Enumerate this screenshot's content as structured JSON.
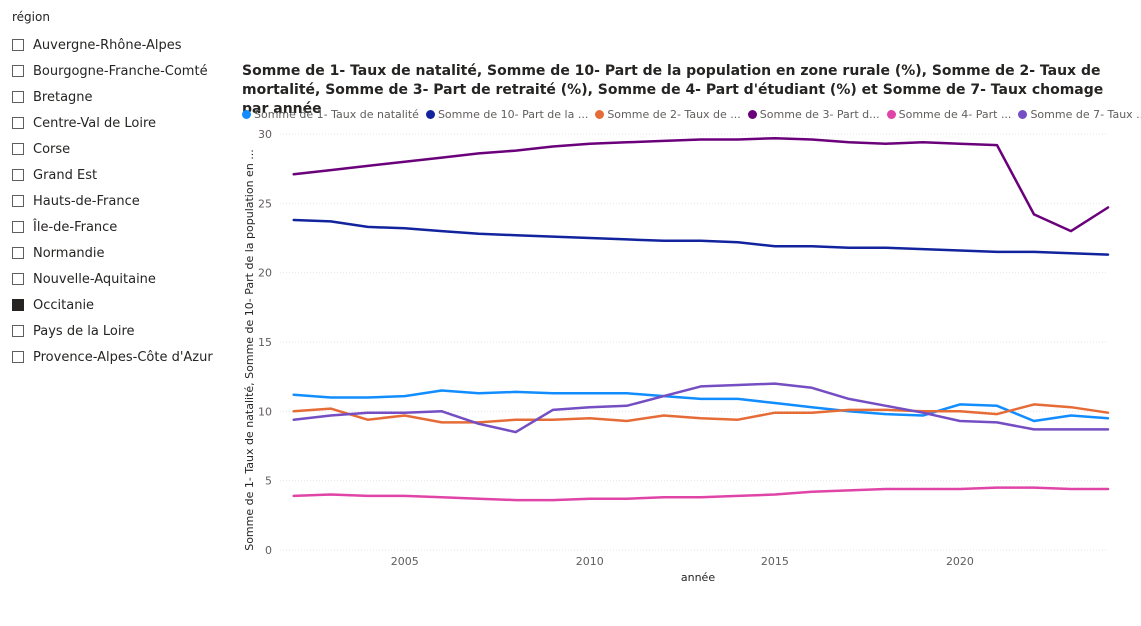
{
  "slicer": {
    "title": "région",
    "items": [
      {
        "label": "Auvergne-Rhône-Alpes",
        "checked": false
      },
      {
        "label": "Bourgogne-Franche-Comté",
        "checked": false
      },
      {
        "label": "Bretagne",
        "checked": false
      },
      {
        "label": "Centre-Val de Loire",
        "checked": false
      },
      {
        "label": "Corse",
        "checked": false
      },
      {
        "label": "Grand Est",
        "checked": false
      },
      {
        "label": "Hauts-de-France",
        "checked": false
      },
      {
        "label": "Île-de-France",
        "checked": false
      },
      {
        "label": "Normandie",
        "checked": false
      },
      {
        "label": "Nouvelle-Aquitaine",
        "checked": false
      },
      {
        "label": "Occitanie",
        "checked": true
      },
      {
        "label": "Pays de la Loire",
        "checked": false
      },
      {
        "label": "Provence-Alpes-Côte d'Azur",
        "checked": false
      }
    ]
  },
  "chart_data": {
    "type": "line",
    "title": "Somme de 1- Taux de natalité, Somme de 10- Part de la population en zone rurale (%), Somme de 2- Taux de mortalité, Somme de 3- Part de retraité (%), Somme de 4- Part d'étudiant (%) et Somme de 7- Taux chomage par année",
    "xlabel": "année",
    "ylabel": "Somme de 1- Taux de natalité, Somme de 10- Part de la population en ...",
    "x": [
      2002,
      2003,
      2004,
      2005,
      2006,
      2007,
      2008,
      2009,
      2010,
      2011,
      2012,
      2013,
      2014,
      2015,
      2016,
      2017,
      2018,
      2019,
      2020,
      2021,
      2022,
      2023,
      2024
    ],
    "xticks": [
      "2005",
      "2010",
      "2015",
      "2020"
    ],
    "xtick_values": [
      2005,
      2010,
      2015,
      2020
    ],
    "yticks": [
      "0",
      "5",
      "10",
      "15",
      "20",
      "25",
      "30"
    ],
    "ylim": [
      0,
      30
    ],
    "grid": true,
    "legend_position": "top-left",
    "series": [
      {
        "name": "Somme de 1- Taux de natalité",
        "legend_label": "Somme de 1- Taux de natalité",
        "color": "#118DFF",
        "values": [
          11.2,
          11.0,
          11.0,
          11.1,
          11.5,
          11.3,
          11.4,
          11.3,
          11.3,
          11.3,
          11.1,
          10.9,
          10.9,
          10.6,
          10.3,
          10.0,
          9.8,
          9.7,
          10.5,
          10.4,
          9.3,
          9.7,
          9.5
        ]
      },
      {
        "name": "Somme de 10- Part de la population en zone rurale (%)",
        "legend_label": "Somme de 10- Part de la ...",
        "color": "#12239E",
        "values": [
          23.8,
          23.7,
          23.3,
          23.2,
          23.0,
          22.8,
          22.7,
          22.6,
          22.5,
          22.4,
          22.3,
          22.3,
          22.2,
          21.9,
          21.9,
          21.8,
          21.8,
          21.7,
          21.6,
          21.5,
          21.5,
          21.4,
          21.3
        ]
      },
      {
        "name": "Somme de 2- Taux de mortalité",
        "legend_label": "Somme de 2- Taux de ...",
        "color": "#E66C37",
        "values": [
          10.0,
          10.2,
          9.4,
          9.7,
          9.2,
          9.2,
          9.4,
          9.4,
          9.5,
          9.3,
          9.7,
          9.5,
          9.4,
          9.9,
          9.9,
          10.1,
          10.1,
          10.0,
          10.0,
          9.8,
          10.5,
          10.3,
          9.9
        ]
      },
      {
        "name": "Somme de 3- Part de retraité (%)",
        "legend_label": "Somme de 3- Part d...",
        "color": "#6B007B",
        "values": [
          27.1,
          27.4,
          27.7,
          28.0,
          28.3,
          28.6,
          28.8,
          29.1,
          29.3,
          29.4,
          29.5,
          29.6,
          29.6,
          29.7,
          29.6,
          29.4,
          29.3,
          29.4,
          29.3,
          29.2,
          24.2,
          23.0,
          24.7
        ]
      },
      {
        "name": "Somme de 4- Part d'étudiant (%)",
        "legend_label": "Somme de 4- Part ...",
        "color": "#E044A7",
        "values": [
          3.9,
          4.0,
          3.9,
          3.9,
          3.8,
          3.7,
          3.6,
          3.6,
          3.7,
          3.7,
          3.8,
          3.8,
          3.9,
          4.0,
          4.2,
          4.3,
          4.4,
          4.4,
          4.4,
          4.5,
          4.5,
          4.4,
          4.4
        ]
      },
      {
        "name": "Somme de 7- Taux chomage",
        "legend_label": "Somme de 7- Taux ...",
        "color": "#744EC2",
        "values": [
          9.4,
          9.7,
          9.9,
          9.9,
          10.0,
          9.1,
          8.5,
          10.1,
          10.3,
          10.4,
          11.1,
          11.8,
          11.9,
          12.0,
          11.7,
          10.9,
          10.4,
          9.9,
          9.3,
          9.2,
          8.7,
          8.7,
          8.7
        ]
      }
    ]
  }
}
